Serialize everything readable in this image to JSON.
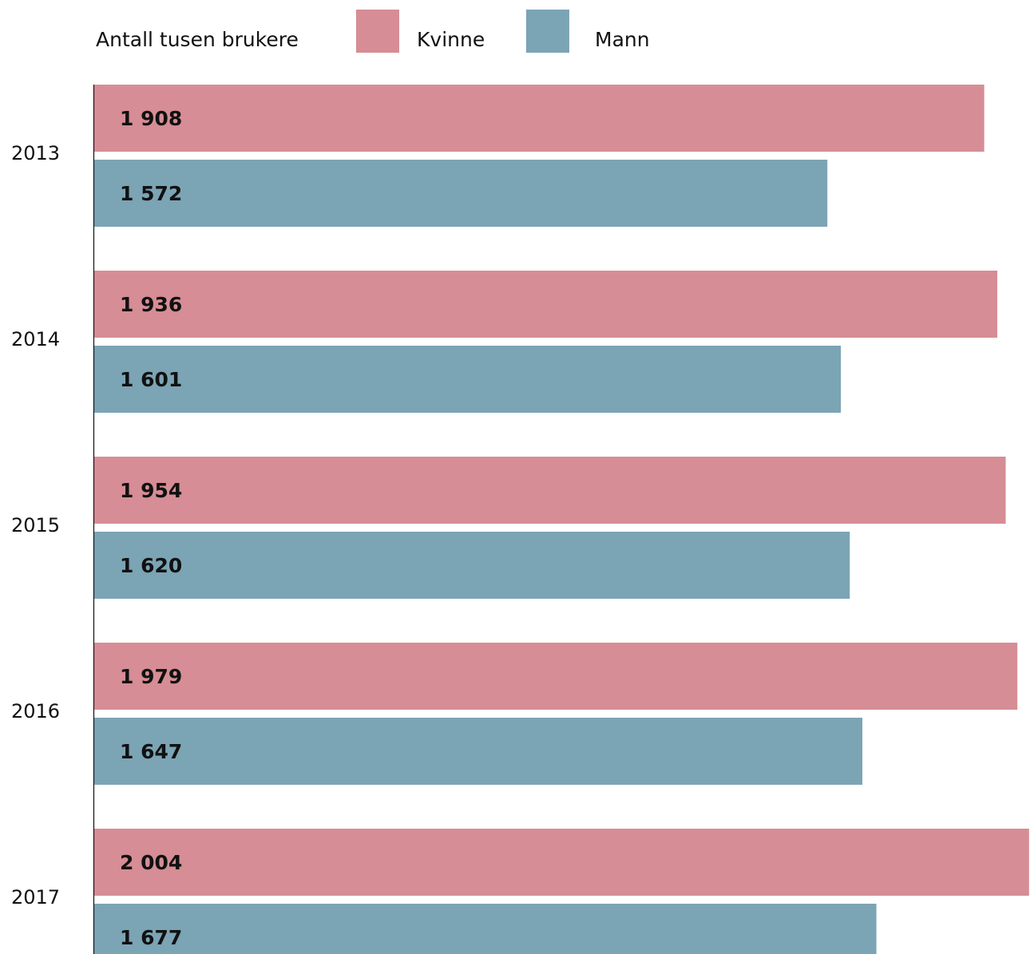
{
  "chart_data": {
    "type": "bar",
    "orientation": "horizontal",
    "title": "Antall tusen brukere",
    "categories": [
      "2013",
      "2014",
      "2015",
      "2016",
      "2017"
    ],
    "series": [
      {
        "name": "Kvinne",
        "color": "#d68d95",
        "values": [
          1908,
          1936,
          1954,
          1979,
          2004
        ],
        "labels": [
          "1 908",
          "1 936",
          "1 954",
          "1 979",
          "2 004"
        ]
      },
      {
        "name": "Mann",
        "color": "#7ba4b5",
        "values": [
          1572,
          1601,
          1620,
          1647,
          1677
        ],
        "labels": [
          "1 572",
          "1 601",
          "1 620",
          "1 647",
          "1 677"
        ]
      }
    ],
    "xlim": [
      0,
      1950
    ],
    "grid": false,
    "legend_position": "top"
  }
}
